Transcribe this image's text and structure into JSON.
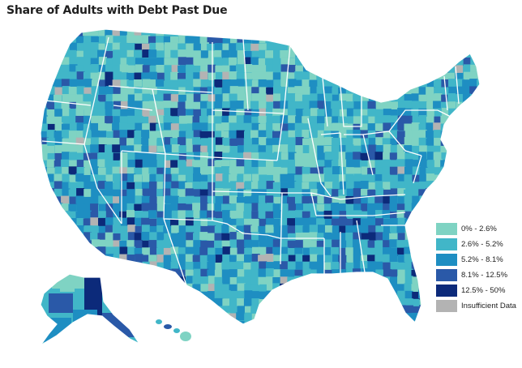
{
  "title": "Share of Adults with Debt Past Due",
  "legend": [
    {
      "label": "0% - 2.6%",
      "color": "#7fd3c3"
    },
    {
      "label": "2.6% - 5.2%",
      "color": "#41b6c8"
    },
    {
      "label": "5.2% - 8.1%",
      "color": "#1e8ec2"
    },
    {
      "label": "8.1% - 12.5%",
      "color": "#2a59a8"
    },
    {
      "label": "12.5% - 50%",
      "color": "#0c2a7a"
    },
    {
      "label": "Insufficient Data",
      "color": "#b3b3b3"
    }
  ],
  "map": {
    "region": "United States counties",
    "border_color": "#ffffff"
  }
}
